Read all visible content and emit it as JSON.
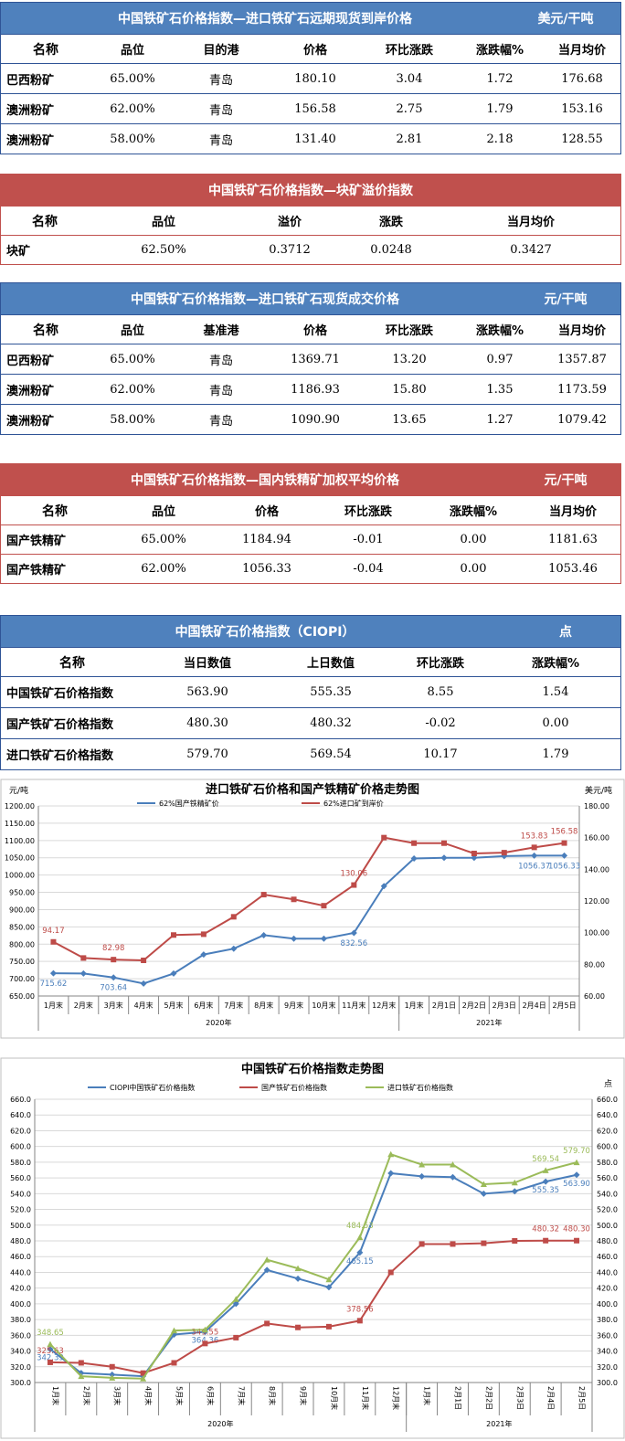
{
  "table1": {
    "title": "中国铁矿石价格指数—进口铁矿石远期现货到岸价格",
    "unit": "美元/干吨",
    "headers": [
      "名称",
      "品位",
      "目的港",
      "价格",
      "环比涨跌",
      "涨跌幅%",
      "当月均价"
    ],
    "rows": [
      [
        "巴西粉矿",
        "65.00%",
        "青岛",
        "180.10",
        "3.04",
        "1.72",
        "176.68"
      ],
      [
        "澳洲粉矿",
        "62.00%",
        "青岛",
        "156.58",
        "2.75",
        "1.79",
        "153.16"
      ],
      [
        "澳洲粉矿",
        "58.00%",
        "青岛",
        "131.40",
        "2.81",
        "2.18",
        "128.55"
      ]
    ]
  },
  "table2": {
    "title": "中国铁矿石价格指数—块矿溢价指数",
    "headers": [
      "名称",
      "品位",
      "溢价",
      "涨跌",
      "当月均价"
    ],
    "rows": [
      [
        "块矿",
        "62.50%",
        "0.3712",
        "0.0248",
        "0.3427"
      ]
    ]
  },
  "table3": {
    "title": "中国铁矿石价格指数—进口铁矿石现货成交价格",
    "unit": "元/干吨",
    "headers": [
      "名称",
      "品位",
      "基准港",
      "价格",
      "环比涨跌",
      "涨跌幅%",
      "当月均价"
    ],
    "rows": [
      [
        "巴西粉矿",
        "65.00%",
        "青岛",
        "1369.71",
        "13.20",
        "0.97",
        "1357.87"
      ],
      [
        "澳洲粉矿",
        "62.00%",
        "青岛",
        "1186.93",
        "15.80",
        "1.35",
        "1173.59"
      ],
      [
        "澳洲粉矿",
        "58.00%",
        "青岛",
        "1090.90",
        "13.65",
        "1.27",
        "1079.42"
      ]
    ]
  },
  "table4": {
    "title": "中国铁矿石价格指数—国内铁精矿加权平均价格",
    "unit": "元/干吨",
    "headers": [
      "名称",
      "品位",
      "价格",
      "环比涨跌",
      "涨跌幅%",
      "当月均价"
    ],
    "rows": [
      [
        "国产铁精矿",
        "65.00%",
        "1184.94",
        "-0.01",
        "0.00",
        "1181.63"
      ],
      [
        "国产铁精矿",
        "62.00%",
        "1056.33",
        "-0.04",
        "0.00",
        "1053.46"
      ]
    ]
  },
  "table5": {
    "title": "中国铁矿石价格指数（CIOPI）",
    "unit": "点",
    "headers": [
      "名称",
      "当日数值",
      "上日数值",
      "环比涨跌",
      "涨跌幅%"
    ],
    "rows": [
      [
        "中国铁矿石价格指数",
        "563.90",
        "555.35",
        "8.55",
        "1.54"
      ],
      [
        "国产铁矿石价格指数",
        "480.30",
        "480.32",
        "-0.02",
        "0.00"
      ],
      [
        "进口铁矿石价格指数",
        "579.70",
        "569.54",
        "10.17",
        "1.79"
      ]
    ]
  },
  "chart_data": [
    {
      "type": "line",
      "title": "进口铁矿石价格和国产铁精矿价格走势图",
      "ylabel_left": "元/吨",
      "ylabel_right": "美元/吨",
      "ylim_left": [
        650,
        1200
      ],
      "yticks_left": [
        "1200.00",
        "1150.00",
        "1100.00",
        "1050.00",
        "1000.00",
        "950.00",
        "900.00",
        "850.00",
        "800.00",
        "750.00",
        "700.00",
        "650.00"
      ],
      "ylim_right": [
        60,
        180
      ],
      "yticks_right": [
        "180.00",
        "160.00",
        "140.00",
        "120.00",
        "100.00",
        "80.00",
        "60.00"
      ],
      "categories": [
        "1月末",
        "2月末",
        "3月末",
        "4月末",
        "5月末",
        "6月末",
        "7月末",
        "8月末",
        "9月末",
        "10月末",
        "11月末",
        "12月末",
        "1月末",
        "2月1日",
        "2月2日",
        "2月3日",
        "2月4日",
        "2月5日"
      ],
      "year_groups": [
        {
          "label": "2020年",
          "count": 12
        },
        {
          "label": "2021年",
          "count": 6
        }
      ],
      "legend_position": "top-left",
      "series": [
        {
          "name": "62%国产铁精矿价",
          "axis": "left",
          "color": "#4a7ebb",
          "values": [
            715.62,
            715,
            703.64,
            686,
            715,
            770,
            787,
            826,
            816,
            816,
            832.56,
            968,
            1048,
            1050,
            1050,
            1055,
            1056.37,
            1056.33
          ],
          "labels": {
            "0": "715.62",
            "2": "703.64",
            "10": "832.56",
            "16": "1056.37",
            "17": "1056.33"
          }
        },
        {
          "name": "62%进口矿到岸价",
          "axis": "right",
          "color": "#be4b48",
          "values": [
            94.17,
            84,
            82.98,
            82.5,
            98.5,
            99,
            110,
            124,
            121,
            117,
            130.06,
            160,
            156.5,
            156.5,
            150,
            150.5,
            153.83,
            156.58
          ],
          "labels": {
            "0": "94.17",
            "2": "82.98",
            "10": "130.06",
            "16": "153.83",
            "17": "156.58"
          }
        }
      ]
    },
    {
      "type": "line",
      "title": "中国铁矿石价格指数走势图",
      "ylabel_right": "点",
      "ylim": [
        300,
        660
      ],
      "yticks": [
        "660.0",
        "640.0",
        "620.0",
        "600.0",
        "580.0",
        "560.0",
        "540.0",
        "520.0",
        "500.0",
        "480.0",
        "460.0",
        "440.0",
        "420.0",
        "400.0",
        "380.0",
        "360.0",
        "340.0",
        "320.0",
        "300.0"
      ],
      "categories": [
        "1月末",
        "2月末",
        "3月末",
        "4月末",
        "5月末",
        "6月末",
        "7月末",
        "8月末",
        "9月末",
        "10月末",
        "11月末",
        "12月末",
        "1月末",
        "2月1日",
        "2月2日",
        "2月3日",
        "2月4日",
        "2月5日"
      ],
      "year_groups": [
        {
          "label": "2020年",
          "count": 12
        },
        {
          "label": "2021年",
          "count": 6
        }
      ],
      "legend_position": "top",
      "series": [
        {
          "name": "CIOPI中国铁矿石价格指数",
          "color": "#4a7ebb",
          "values": [
            342.39,
            312,
            310,
            308,
            361,
            364.36,
            400,
            443,
            432,
            421,
            465.15,
            566,
            562,
            561,
            540,
            543,
            555.35,
            563.9
          ],
          "labels": {
            "0": "342.39",
            "5": "364.36",
            "10": "465.15",
            "16": "555.35",
            "17": "563.90"
          }
        },
        {
          "name": "国产铁矿石价格指数",
          "color": "#be4b48",
          "values": [
            325.63,
            325,
            320,
            312,
            325,
            349.55,
            357,
            375,
            370,
            371,
            378.56,
            440,
            476,
            476,
            477,
            480,
            480.32,
            480.3
          ],
          "labels": {
            "0": "325.63",
            "5": "349.55",
            "10": "378.56",
            "16": "480.32",
            "17": "480.30"
          }
        },
        {
          "name": "进口铁矿石价格指数",
          "color": "#9bbb59",
          "values": [
            348.65,
            308,
            306,
            305,
            366,
            367,
            406,
            456,
            445,
            431,
            484.53,
            590,
            577,
            577,
            552,
            554,
            569.54,
            579.7
          ],
          "labels": {
            "0": "348.65",
            "10": "484.53",
            "16": "569.54",
            "17": "579.70"
          }
        }
      ]
    }
  ]
}
